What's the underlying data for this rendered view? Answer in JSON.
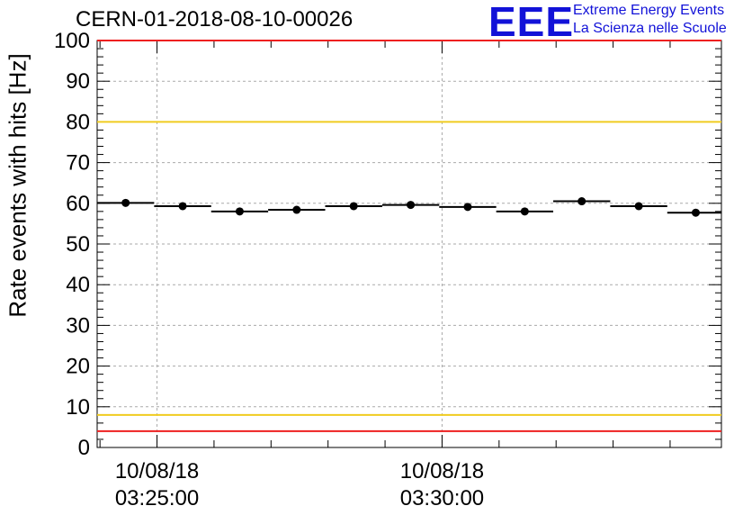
{
  "chart_data": {
    "type": "scatter",
    "title": "CERN-01-2018-08-10-00026",
    "ylabel": "Rate events with hits [Hz]",
    "ylim": [
      0,
      100
    ],
    "y_ticks": [
      0,
      10,
      20,
      30,
      40,
      50,
      60,
      70,
      80,
      90,
      100
    ],
    "x_time_range": [
      "03:23:57",
      "03:34:54"
    ],
    "x_ticks": [
      {
        "date": "10/08/18",
        "time": "03:25:00"
      },
      {
        "date": "10/08/18",
        "time": "03:30:00"
      }
    ],
    "grid": true,
    "series": [
      {
        "style": "points with horizontal bin-width bars",
        "bin_width_seconds": 60,
        "points": [
          {
            "x": "03:24:27",
            "y": 60.1
          },
          {
            "x": "03:25:27",
            "y": 59.3
          },
          {
            "x": "03:26:27",
            "y": 58.0
          },
          {
            "x": "03:27:27",
            "y": 58.4
          },
          {
            "x": "03:28:27",
            "y": 59.3
          },
          {
            "x": "03:29:27",
            "y": 59.6
          },
          {
            "x": "03:30:27",
            "y": 59.1
          },
          {
            "x": "03:31:27",
            "y": 58.0
          },
          {
            "x": "03:32:27",
            "y": 60.5
          },
          {
            "x": "03:33:27",
            "y": 59.3
          },
          {
            "x": "03:34:27",
            "y": 57.7
          }
        ]
      }
    ],
    "reference_lines": [
      {
        "y": 100,
        "color": "#ee2020"
      },
      {
        "y": 80,
        "color": "#f0cc20"
      },
      {
        "y": 8,
        "color": "#f0cc20"
      },
      {
        "y": 4,
        "color": "#ee2020"
      }
    ],
    "colors": {
      "points": "#000000",
      "grid": "#aaaaaa",
      "axis": "#000000"
    }
  },
  "logo": {
    "mark": "EEE",
    "line1": "Extreme Energy Events",
    "line2": "La Scienza nelle Scuole",
    "color": "#1212d8"
  }
}
